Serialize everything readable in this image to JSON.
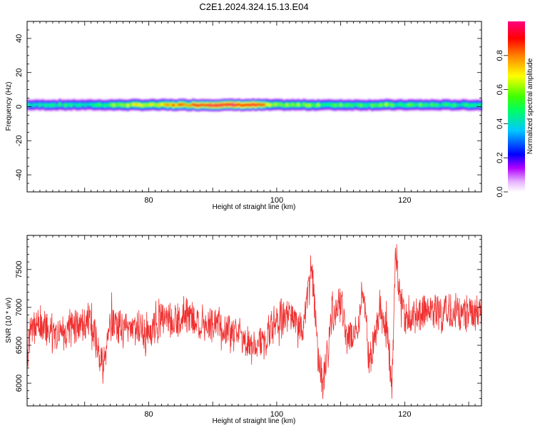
{
  "figure": {
    "title": "C2E1.2024.324.15.13.E04"
  },
  "chart_data": [
    {
      "type": "heatmap",
      "xlabel": "Height of straight line (km)",
      "ylabel": "Frequency (Hz)",
      "xlim": [
        61,
        132
      ],
      "ylim": [
        -50,
        50
      ],
      "xticks": [
        80,
        100,
        120
      ],
      "yticks": [
        -40,
        -20,
        0,
        20,
        40
      ],
      "band_center_hz": 1,
      "profile": [
        {
          "x": 61,
          "amp": 0.45
        },
        {
          "x": 64,
          "amp": 0.45
        },
        {
          "x": 67,
          "amp": 0.47
        },
        {
          "x": 70,
          "amp": 0.46
        },
        {
          "x": 73,
          "amp": 0.5
        },
        {
          "x": 76,
          "amp": 0.62
        },
        {
          "x": 79,
          "amp": 0.65
        },
        {
          "x": 81,
          "amp": 0.68
        },
        {
          "x": 83,
          "amp": 0.78
        },
        {
          "x": 86,
          "amp": 0.82
        },
        {
          "x": 88,
          "amp": 0.9
        },
        {
          "x": 91,
          "amp": 0.96
        },
        {
          "x": 94,
          "amp": 0.97
        },
        {
          "x": 97,
          "amp": 0.92
        },
        {
          "x": 99,
          "amp": 0.6
        },
        {
          "x": 102,
          "amp": 0.55
        },
        {
          "x": 105,
          "amp": 0.6
        },
        {
          "x": 108,
          "amp": 0.5
        },
        {
          "x": 111,
          "amp": 0.55
        },
        {
          "x": 114,
          "amp": 0.5
        },
        {
          "x": 117,
          "amp": 0.58
        },
        {
          "x": 119,
          "amp": 0.5
        },
        {
          "x": 122,
          "amp": 0.52
        },
        {
          "x": 125,
          "amp": 0.5
        },
        {
          "x": 128,
          "amp": 0.48
        },
        {
          "x": 132,
          "amp": 0.47
        }
      ],
      "colorbar": {
        "label": "Normalized spectral amplitude",
        "range": [
          0.0,
          1.0
        ],
        "ticks": [
          0.0,
          0.2,
          0.4,
          0.6,
          0.8
        ],
        "colors": [
          "#ffffff",
          "#b000ff",
          "#0000ff",
          "#00c8ff",
          "#00ff60",
          "#40ff00",
          "#ffff00",
          "#ff8000",
          "#ff0000",
          "#ff0080"
        ]
      }
    },
    {
      "type": "line",
      "xlabel": "Height of straight line (km)",
      "ylabel": "SNR (10 * v/v)",
      "xlim": [
        61,
        132
      ],
      "ylim": [
        5700,
        7950
      ],
      "xticks": [
        80,
        100,
        120
      ],
      "yticks": [
        6000,
        6500,
        7000,
        7500
      ],
      "line_color": "#f03030",
      "series": [
        {
          "points": [
            {
              "x": 61,
              "y": 6150
            },
            {
              "x": 61.5,
              "y": 6700
            },
            {
              "x": 63,
              "y": 6800
            },
            {
              "x": 65,
              "y": 6650
            },
            {
              "x": 67,
              "y": 6700
            },
            {
              "x": 69,
              "y": 6750
            },
            {
              "x": 71,
              "y": 6850
            },
            {
              "x": 72.8,
              "y": 6200
            },
            {
              "x": 74,
              "y": 6800
            },
            {
              "x": 76,
              "y": 6700
            },
            {
              "x": 78,
              "y": 6750
            },
            {
              "x": 80,
              "y": 6600
            },
            {
              "x": 82,
              "y": 6850
            },
            {
              "x": 84,
              "y": 6800
            },
            {
              "x": 86,
              "y": 6900
            },
            {
              "x": 88,
              "y": 6750
            },
            {
              "x": 90,
              "y": 6800
            },
            {
              "x": 92,
              "y": 6700
            },
            {
              "x": 94,
              "y": 6650
            },
            {
              "x": 96,
              "y": 6500
            },
            {
              "x": 98,
              "y": 6550
            },
            {
              "x": 100,
              "y": 6850
            },
            {
              "x": 102,
              "y": 6900
            },
            {
              "x": 104,
              "y": 6700
            },
            {
              "x": 105.5,
              "y": 7500
            },
            {
              "x": 106.5,
              "y": 6300
            },
            {
              "x": 107.3,
              "y": 6000
            },
            {
              "x": 108.5,
              "y": 6800
            },
            {
              "x": 110,
              "y": 7150
            },
            {
              "x": 111,
              "y": 6600
            },
            {
              "x": 112.5,
              "y": 6650
            },
            {
              "x": 113.5,
              "y": 7300
            },
            {
              "x": 114.5,
              "y": 6200
            },
            {
              "x": 116,
              "y": 6950
            },
            {
              "x": 117.3,
              "y": 6700
            },
            {
              "x": 118,
              "y": 5850
            },
            {
              "x": 118.6,
              "y": 7800
            },
            {
              "x": 119.2,
              "y": 7100
            },
            {
              "x": 120,
              "y": 6850
            },
            {
              "x": 122,
              "y": 6900
            },
            {
              "x": 124,
              "y": 6950
            },
            {
              "x": 126,
              "y": 6900
            },
            {
              "x": 128,
              "y": 6950
            },
            {
              "x": 130,
              "y": 6900
            },
            {
              "x": 132,
              "y": 6950
            }
          ]
        }
      ]
    }
  ]
}
